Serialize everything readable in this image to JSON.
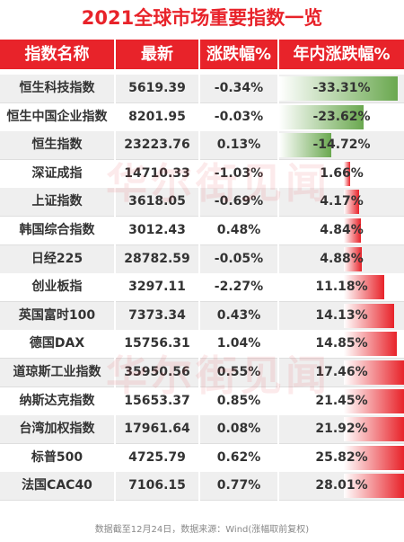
{
  "title": "2021全球市场重要指数一览",
  "headers": [
    "指数名称",
    "最新",
    "涨跌幅%",
    "年内涨跌幅%"
  ],
  "footer": "数据截至12月24日，数据来源：Wind(涨幅取前复权)",
  "watermark": "华尔街见闻",
  "colors": {
    "accent": "#e8232a",
    "negative_bar": "#6aa84f",
    "positive_bar": "#e8232a"
  },
  "chart_data": {
    "type": "table",
    "title": "2021全球市场重要指数一览",
    "columns": [
      "指数名称",
      "最新",
      "涨跌幅%",
      "年内涨跌幅%"
    ],
    "rows": [
      {
        "name": "恒生科技指数",
        "latest": "5619.39",
        "change": "-0.34%",
        "ytd": "-33.31%",
        "ytd_value": -33.31
      },
      {
        "name": "恒生中国企业指数",
        "latest": "8201.95",
        "change": "-0.03%",
        "ytd": "-23.62%",
        "ytd_value": -23.62
      },
      {
        "name": "恒生指数",
        "latest": "23223.76",
        "change": "0.13%",
        "ytd": "-14.72%",
        "ytd_value": -14.72
      },
      {
        "name": "深证成指",
        "latest": "14710.33",
        "change": "-1.03%",
        "ytd": "1.66%",
        "ytd_value": 1.66
      },
      {
        "name": "上证指数",
        "latest": "3618.05",
        "change": "-0.69%",
        "ytd": "4.17%",
        "ytd_value": 4.17
      },
      {
        "name": "韩国综合指数",
        "latest": "3012.43",
        "change": "0.48%",
        "ytd": "4.84%",
        "ytd_value": 4.84
      },
      {
        "name": "日经225",
        "latest": "28782.59",
        "change": "-0.05%",
        "ytd": "4.88%",
        "ytd_value": 4.88
      },
      {
        "name": "创业板指",
        "latest": "3297.11",
        "change": "-2.27%",
        "ytd": "11.18%",
        "ytd_value": 11.18
      },
      {
        "name": "英国富时100",
        "latest": "7373.34",
        "change": "0.43%",
        "ytd": "14.13%",
        "ytd_value": 14.13
      },
      {
        "name": "德国DAX",
        "latest": "15756.31",
        "change": "1.04%",
        "ytd": "14.85%",
        "ytd_value": 14.85
      },
      {
        "name": "道琼斯工业指数",
        "latest": "35950.56",
        "change": "0.55%",
        "ytd": "17.46%",
        "ytd_value": 17.46
      },
      {
        "name": "纳斯达克指数",
        "latest": "15653.37",
        "change": "0.85%",
        "ytd": "21.45%",
        "ytd_value": 21.45
      },
      {
        "name": "台湾加权指数",
        "latest": "17961.64",
        "change": "0.08%",
        "ytd": "21.92%",
        "ytd_value": 21.92
      },
      {
        "name": "标普500",
        "latest": "4725.79",
        "change": "0.62%",
        "ytd": "25.82%",
        "ytd_value": 25.82
      },
      {
        "name": "法国CAC40",
        "latest": "7106.15",
        "change": "0.77%",
        "ytd": "28.01%",
        "ytd_value": 28.01
      }
    ]
  }
}
